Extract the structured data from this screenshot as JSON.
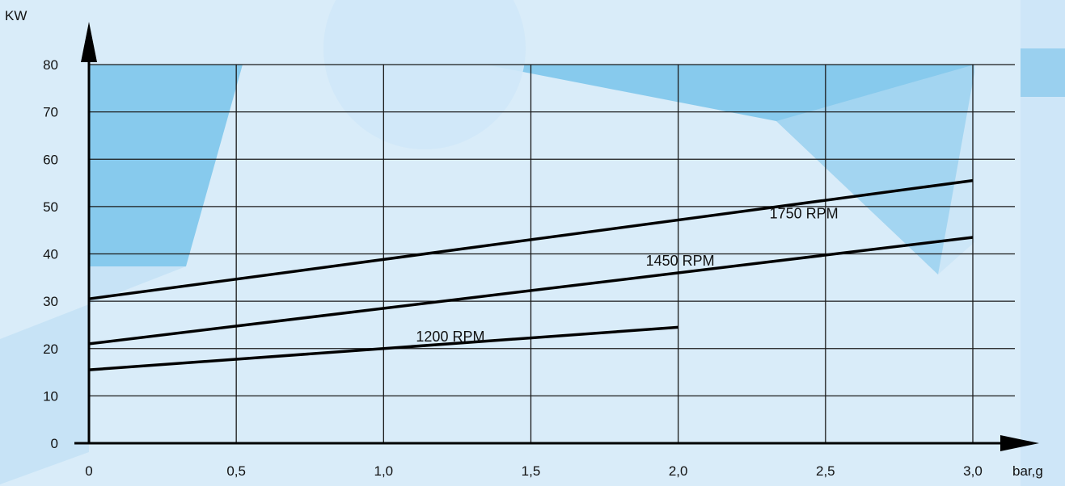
{
  "chart_data": {
    "type": "line",
    "xlabel": "bar,g",
    "ylabel": "KW",
    "xlim": [
      0,
      3.0
    ],
    "ylim": [
      0,
      80
    ],
    "x_ticks": [
      "0",
      "0,5",
      "1,0",
      "1,5",
      "2,0",
      "2,5",
      "3,0"
    ],
    "y_ticks": [
      "0",
      "10",
      "20",
      "30",
      "40",
      "50",
      "60",
      "70",
      "80"
    ],
    "grid": true,
    "legend": "none",
    "series": [
      {
        "name": "1750 RPM",
        "x": [
          0,
          3.0
        ],
        "y": [
          30.5,
          55.5
        ]
      },
      {
        "name": "1450 RPM",
        "x": [
          0,
          3.0
        ],
        "y": [
          21,
          43.5
        ]
      },
      {
        "name": "1200 RPM",
        "x": [
          0,
          2.0
        ],
        "y": [
          15.5,
          24.5
        ]
      }
    ]
  },
  "colors": {
    "background": "#d9ecf9",
    "shape_dark": "#3aa6df",
    "shape_light": "#c5e3f6",
    "grid": "#1a1a1a",
    "lines": "#000000"
  }
}
